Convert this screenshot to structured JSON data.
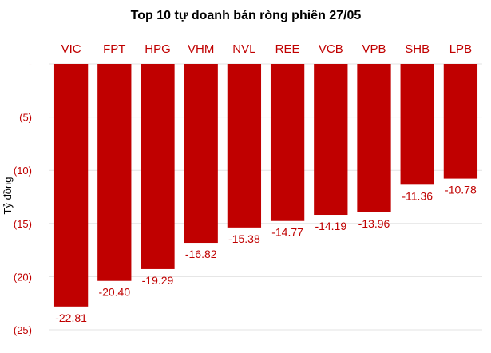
{
  "chart_data": {
    "type": "bar",
    "title": "Top 10 tự doanh bán ròng phiên 27/05",
    "ylabel": "Tỷ đồng",
    "xlabel": "",
    "categories": [
      "VIC",
      "FPT",
      "HPG",
      "VHM",
      "NVL",
      "REE",
      "VCB",
      "VPB",
      "SHB",
      "LPB"
    ],
    "values": [
      -22.81,
      -20.4,
      -19.29,
      -16.82,
      -15.38,
      -14.77,
      -14.19,
      -13.96,
      -11.36,
      -10.78
    ],
    "value_labels": [
      "-22.81",
      "-20.40",
      "-19.29",
      "-16.82",
      "-15.38",
      "-14.77",
      "-14.19",
      "-13.96",
      "-11.36",
      "-10.78"
    ],
    "ylim": [
      -25,
      0
    ],
    "yticks": [
      0,
      -5,
      -10,
      -15,
      -20,
      -25
    ],
    "ytick_labels": [
      "-",
      "(5)",
      "(10)",
      "(15)",
      "(20)",
      "(25)"
    ],
    "grid": true,
    "legend": "none",
    "category_position": "top",
    "colors": {
      "bar": "#c00000",
      "labels": "#c00000"
    }
  }
}
